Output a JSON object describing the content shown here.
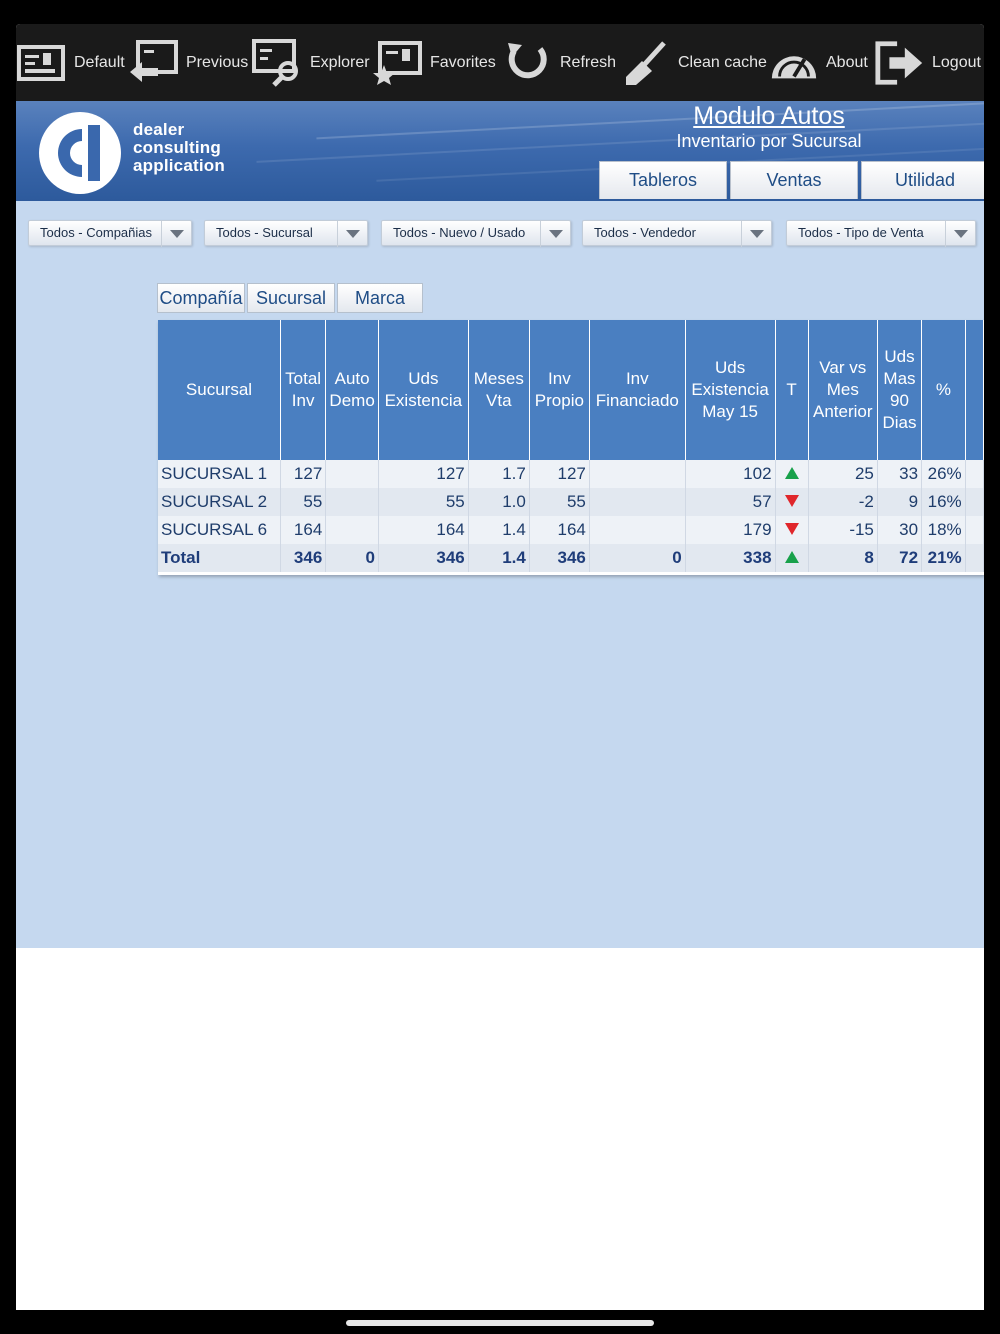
{
  "toolbar": {
    "items": [
      {
        "label": "Default",
        "icon": "default-icon"
      },
      {
        "label": "Previous",
        "icon": "previous-icon"
      },
      {
        "label": "Explorer",
        "icon": "explorer-icon"
      },
      {
        "label": "Favorites",
        "icon": "favorites-icon"
      },
      {
        "label": "Refresh",
        "icon": "refresh-icon"
      },
      {
        "label": "Clean cache",
        "icon": "broom-icon"
      },
      {
        "label": "About",
        "icon": "speedometer-icon"
      },
      {
        "label": "Logout",
        "icon": "logout-icon"
      }
    ]
  },
  "header": {
    "logo_lines": [
      "dealer",
      "consulting",
      "application"
    ],
    "module_title": "Modulo Autos",
    "module_subtitle": "Inventario por Sucursal",
    "tabs": [
      "Tableros",
      "Ventas",
      "Utilidad"
    ]
  },
  "filters": [
    "Todos - Compañias",
    "Todos - Sucursal",
    "Todos - Nuevo / Usado",
    "Todos - Vendedor",
    "Todos - Tipo de Venta"
  ],
  "sub_tabs": [
    "Compañía",
    "Sucursal",
    "Marca"
  ],
  "grid": {
    "headers": [
      "Sucursal",
      "Total Inv",
      "Auto Demo",
      "Uds Existencia",
      "Meses Vta",
      "Inv Propio",
      "Inv Financiado",
      "Uds Existencia May 15",
      "T",
      "Var vs Mes Anterior",
      "Uds Mas 90 Dias",
      "%"
    ],
    "rows": [
      {
        "sucursal": "SUCURSAL 1",
        "total_inv": "127",
        "auto_demo": "",
        "uds_existencia": "127",
        "meses_vta": "1.7",
        "inv_propio": "127",
        "inv_financiado": "",
        "uds_may15": "102",
        "trend": "up",
        "var": "25",
        "uds_90": "33",
        "pct": "26%"
      },
      {
        "sucursal": "SUCURSAL 2",
        "total_inv": "55",
        "auto_demo": "",
        "uds_existencia": "55",
        "meses_vta": "1.0",
        "inv_propio": "55",
        "inv_financiado": "",
        "uds_may15": "57",
        "trend": "down",
        "var": "-2",
        "uds_90": "9",
        "pct": "16%"
      },
      {
        "sucursal": "SUCURSAL 6",
        "total_inv": "164",
        "auto_demo": "",
        "uds_existencia": "164",
        "meses_vta": "1.4",
        "inv_propio": "164",
        "inv_financiado": "",
        "uds_may15": "179",
        "trend": "down",
        "var": "-15",
        "uds_90": "30",
        "pct": "18%"
      }
    ],
    "total": {
      "sucursal": "Total",
      "total_inv": "346",
      "auto_demo": "0",
      "uds_existencia": "346",
      "meses_vta": "1.4",
      "inv_propio": "346",
      "inv_financiado": "0",
      "uds_may15": "338",
      "trend": "up",
      "var": "8",
      "uds_90": "72",
      "pct": "21%"
    }
  },
  "colors": {
    "trend_up": "#18a14b",
    "trend_down": "#e0262b",
    "grid_header": "#4a7fc1",
    "background": "#c5d8ef"
  }
}
